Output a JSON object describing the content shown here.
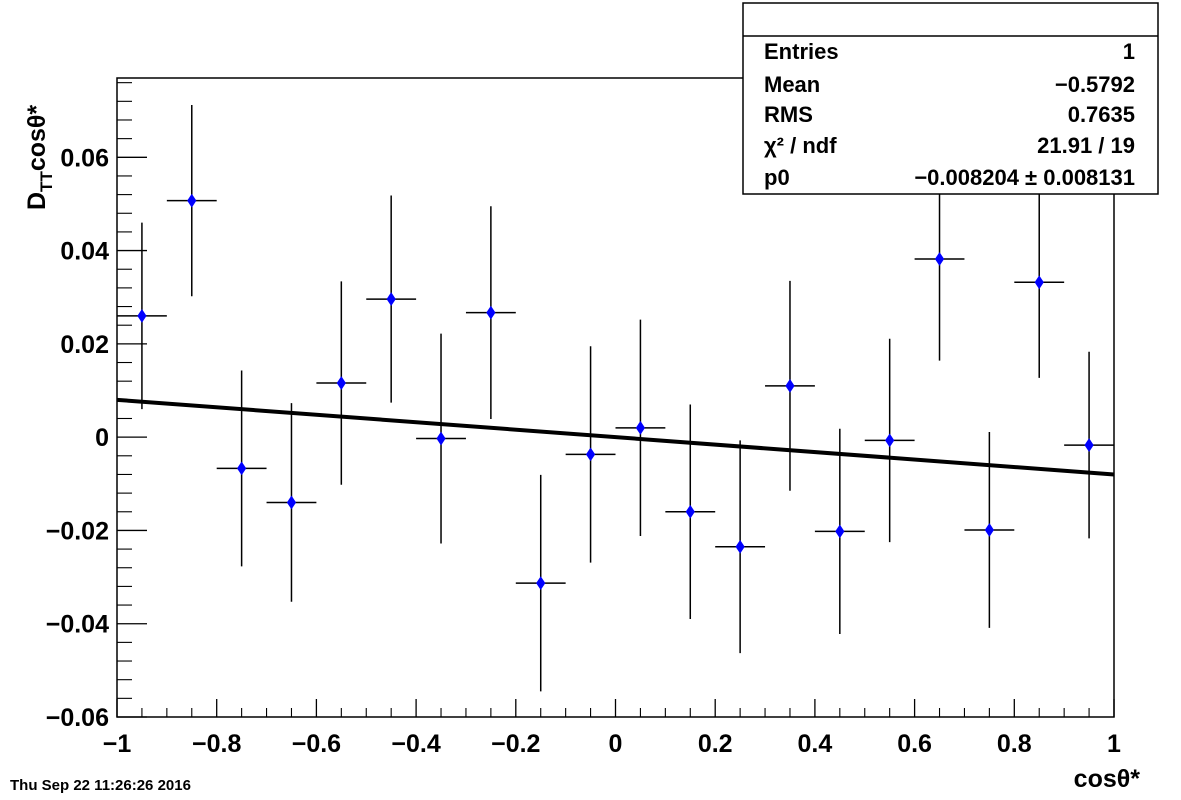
{
  "timestamp": "Thu Sep 22 11:26:26 2016",
  "stats_box": {
    "rows": [
      {
        "label": "Entries",
        "value": "1"
      },
      {
        "label": "Mean",
        "value": "−0.5792"
      },
      {
        "label": "RMS",
        "value": "0.7635"
      },
      {
        "label": "χ² / ndf",
        "value": "21.91 / 19"
      },
      {
        "label": "p0",
        "value": "−0.008204 ± 0.008131"
      }
    ]
  },
  "chart_data": {
    "type": "scatter",
    "title": "",
    "xlabel": "cosθ*",
    "ylabel": "D_TT cosθ*",
    "xlim": [
      -1,
      1
    ],
    "ylim": [
      -0.06,
      0.077
    ],
    "x_ticks": [
      -1,
      -0.8,
      -0.6,
      -0.4,
      -0.2,
      0,
      0.2,
      0.4,
      0.6,
      0.8,
      1
    ],
    "x_tick_labels": [
      "−1",
      "−0.8",
      "−0.6",
      "−0.4",
      "−0.2",
      "0",
      "0.2",
      "0.4",
      "0.6",
      "0.8",
      "1"
    ],
    "y_ticks": [
      -0.06,
      -0.04,
      -0.02,
      0,
      0.02,
      0.04,
      0.06
    ],
    "y_tick_labels": [
      "−0.06",
      "−0.04",
      "−0.02",
      "0",
      "0.02",
      "0.04",
      "0.06"
    ],
    "marker_color": "#0000ff",
    "series": [
      {
        "x": [
          -0.95,
          -0.85,
          -0.75,
          -0.65,
          -0.55,
          -0.45,
          -0.35,
          -0.25,
          -0.15,
          -0.05,
          0.05,
          0.15,
          0.25,
          0.35,
          0.45,
          0.55,
          0.65,
          0.75,
          0.85,
          0.95
        ],
        "x_err": 0.05,
        "y": [
          0.026,
          0.0507,
          -0.0067,
          -0.014,
          0.0116,
          0.0296,
          -0.0003,
          0.0267,
          -0.0313,
          -0.0037,
          0.002,
          -0.016,
          -0.0235,
          0.011,
          -0.0202,
          -0.0007,
          0.0382,
          -0.0199,
          0.0332,
          -0.0017
        ],
        "y_err": [
          0.02,
          0.0205,
          0.021,
          0.0213,
          0.0218,
          0.0222,
          0.0225,
          0.0228,
          0.0232,
          0.0232,
          0.0232,
          0.023,
          0.0228,
          0.0225,
          0.022,
          0.0218,
          0.0218,
          0.021,
          0.0205,
          0.02
        ]
      }
    ],
    "fit_line": {
      "x": [
        -1,
        1
      ],
      "y": [
        0.008,
        -0.008
      ],
      "color": "#000000"
    }
  }
}
